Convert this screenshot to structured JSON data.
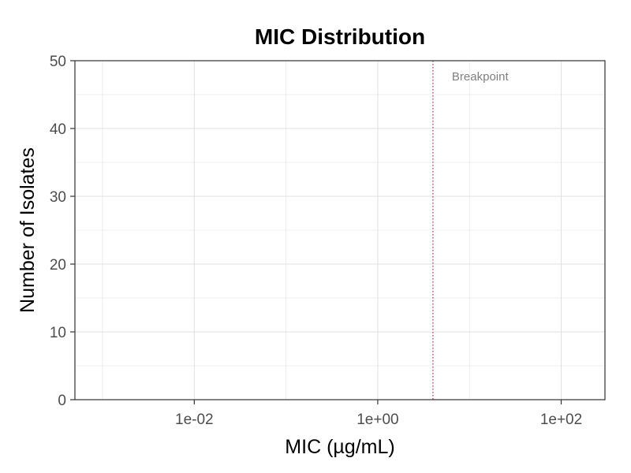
{
  "chart_data": {
    "type": "bar",
    "title": "MIC Distribution",
    "xlabel": "MIC (µg/mL)",
    "ylabel": "Number of Isolates",
    "x_scale": "log10",
    "xlim": [
      0.0005,
      300
    ],
    "ylim": [
      0,
      50
    ],
    "x_ticks": [
      {
        "value": 0.01,
        "label": "1e-02"
      },
      {
        "value": 1,
        "label": "1e+00"
      },
      {
        "value": 100,
        "label": "1e+02"
      }
    ],
    "y_ticks": [
      {
        "value": 0,
        "label": "0"
      },
      {
        "value": 10,
        "label": "10"
      },
      {
        "value": 20,
        "label": "20"
      },
      {
        "value": 30,
        "label": "30"
      },
      {
        "value": 40,
        "label": "40"
      },
      {
        "value": 50,
        "label": "50"
      }
    ],
    "grid": true,
    "series": [],
    "breakpoint": {
      "value": 4,
      "label": "Breakpoint",
      "color": "#8b0000",
      "line_style": "dotted"
    }
  },
  "colors": {
    "background": "#ffffff",
    "grid": "#e0e0e0",
    "panel_border": "#333333",
    "tick_text": "#4d4d4d",
    "annotation_text": "#7f7f7f"
  }
}
